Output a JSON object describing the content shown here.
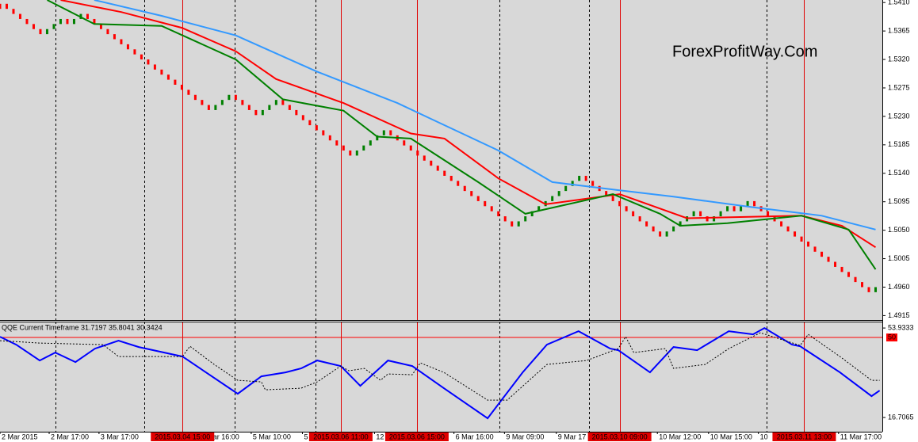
{
  "chart_data": [
    {
      "type": "renko",
      "watermark": "ForexProfitWay.Com",
      "background": "#d8d8d8",
      "xlim": [
        0,
        131
      ],
      "ylim": [
        1.4908,
        1.5414
      ],
      "yticks": [
        {
          "value": 1.541,
          "label": "1.5410"
        },
        {
          "value": 1.5365,
          "label": "1.5365"
        },
        {
          "value": 1.532,
          "label": "1.5320"
        },
        {
          "value": 1.5275,
          "label": "1.5275"
        },
        {
          "value": 1.523,
          "label": "1.5230"
        },
        {
          "value": 1.5185,
          "label": "1.5185"
        },
        {
          "value": 1.514,
          "label": "1.5140"
        },
        {
          "value": 1.5095,
          "label": "1.5095"
        },
        {
          "value": 1.505,
          "label": "1.5050"
        },
        {
          "value": 1.5005,
          "label": "1.5005"
        },
        {
          "value": 1.496,
          "label": "1.4960"
        },
        {
          "value": 1.4915,
          "label": "1.4915"
        }
      ],
      "bricks": {
        "up_color": "#008000",
        "down_color": "#ff0000",
        "values": [
          1.5408,
          1.54,
          1.5392,
          1.5384,
          1.5376,
          1.5368,
          1.536,
          1.5368,
          1.5376,
          1.5384,
          1.5376,
          1.5384,
          1.5392,
          1.5384,
          1.5376,
          1.5368,
          1.536,
          1.5352,
          1.5344,
          1.5336,
          1.5328,
          1.532,
          1.5312,
          1.5304,
          1.5296,
          1.5288,
          1.528,
          1.5272,
          1.5264,
          1.5256,
          1.5248,
          1.524,
          1.5248,
          1.5256,
          1.5264,
          1.5256,
          1.5248,
          1.524,
          1.5232,
          1.524,
          1.5248,
          1.5256,
          1.5248,
          1.524,
          1.5232,
          1.5224,
          1.5216,
          1.5208,
          1.52,
          1.5192,
          1.5184,
          1.5176,
          1.5168,
          1.5176,
          1.5184,
          1.5192,
          1.52,
          1.5208,
          1.52,
          1.5192,
          1.5184,
          1.5176,
          1.5168,
          1.516,
          1.5152,
          1.5144,
          1.5136,
          1.5128,
          1.512,
          1.5112,
          1.5104,
          1.5096,
          1.5088,
          1.508,
          1.5072,
          1.5064,
          1.5056,
          1.5064,
          1.5072,
          1.508,
          1.5088,
          1.5096,
          1.5104,
          1.5112,
          1.512,
          1.5128,
          1.5136,
          1.5128,
          1.512,
          1.5112,
          1.5104,
          1.5096,
          1.5088,
          1.508,
          1.5072,
          1.5064,
          1.5056,
          1.5048,
          1.504,
          1.5048,
          1.5056,
          1.5064,
          1.5072,
          1.508,
          1.5072,
          1.5064,
          1.5072,
          1.508,
          1.5088,
          1.508,
          1.5088,
          1.5096,
          1.5088,
          1.508,
          1.5072,
          1.5064,
          1.5056,
          1.5048,
          1.504,
          1.5032,
          1.5024,
          1.5016,
          1.5008,
          1.5,
          1.4992,
          1.4984,
          1.4976,
          1.4968,
          1.496,
          1.4952,
          1.496
        ]
      },
      "series": [
        {
          "color": "#3399ff",
          "x": [
            14,
            24,
            35,
            47,
            59,
            64,
            74,
            82,
            92,
            100,
            112,
            122,
            130
          ],
          "values": [
            1.5414,
            1.5389,
            1.5358,
            1.5301,
            1.5251,
            1.5226,
            1.5176,
            1.5126,
            1.5113,
            1.5103,
            1.5086,
            1.5073,
            1.5051
          ]
        },
        {
          "color": "#ff0000",
          "x": [
            9,
            18,
            27,
            35,
            41,
            51,
            61,
            66,
            74,
            81,
            92,
            102,
            119,
            125,
            130
          ],
          "values": [
            1.5414,
            1.5395,
            1.537,
            1.5333,
            1.5289,
            1.5251,
            1.5203,
            1.5195,
            1.5132,
            1.5091,
            1.5107,
            1.5069,
            1.5073,
            1.5057,
            1.5023
          ]
        },
        {
          "color": "#008000",
          "x": [
            7,
            14,
            24,
            35,
            42,
            51,
            56,
            61,
            71,
            78,
            91,
            98,
            101,
            108,
            119,
            126,
            130
          ],
          "values": [
            1.5414,
            1.5376,
            1.5373,
            1.532,
            1.5257,
            1.5239,
            1.5198,
            1.5195,
            1.5126,
            1.5076,
            1.5107,
            1.5076,
            1.5057,
            1.5061,
            1.5073,
            1.5051,
            1.4988
          ]
        }
      ],
      "separators": [
        8.2,
        21.4,
        34.8,
        46.8,
        74.1,
        87.4,
        113.8
      ],
      "markers": [
        {
          "x": 27.1,
          "label": "2015.03.04 15:00"
        },
        {
          "x": 50.6,
          "label": "2015.03.06 11:00"
        },
        {
          "x": 61.9,
          "label": "2015.03.06 15:00"
        },
        {
          "x": 92,
          "label": "2015.03.10 09:00"
        },
        {
          "x": 119.4,
          "label": "2015.03.11 13:00"
        }
      ],
      "marker_color": "#e00000"
    },
    {
      "type": "line",
      "label": "QQE Current Timeframe 31.7197 35.8041 30.3424",
      "background": "#d8d8d8",
      "xlim": [
        0,
        131
      ],
      "ylim": [
        10.8,
        56.6
      ],
      "yticks": [
        16.7065,
        53.9333
      ],
      "level": 50,
      "level_color": "#ff0000",
      "xticks": [
        {
          "value": 0,
          "label": "2 Mar 2015"
        },
        {
          "value": 7.3,
          "label": "2 Mar 17:00"
        },
        {
          "value": 14.7,
          "label": "3 Mar 17:00"
        },
        {
          "value": 31.4,
          "label": "ar 16:00"
        },
        {
          "value": 37.3,
          "label": "5 Mar 10:00"
        },
        {
          "value": 44.9,
          "label": "5"
        },
        {
          "value": 55.6,
          "label": "12"
        },
        {
          "value": 67.4,
          "label": "6 Mar 16:00"
        },
        {
          "value": 74.9,
          "label": "9 Mar 09:00"
        },
        {
          "value": 82.6,
          "label": "9 Mar 17"
        },
        {
          "value": 97.6,
          "label": "10 Mar 12:00"
        },
        {
          "value": 105.2,
          "label": "10 Mar 15:00"
        },
        {
          "value": 112.6,
          "label": "10"
        },
        {
          "value": 124.5,
          "label": "11 Mar 17:00"
        }
      ],
      "series": [
        {
          "color": "#0000ff",
          "dashed": false,
          "x": [
            0,
            2.4,
            5.9,
            8.2,
            11.2,
            14.1,
            17.6,
            20.6,
            27.1,
            35.3,
            38.8,
            42.4,
            44.7,
            47.1,
            50.6,
            53.5,
            57.6,
            61.2,
            65.9,
            72.4,
            77.6,
            81.2,
            85.9,
            90.6,
            91.8,
            96.5,
            100,
            103.5,
            108.2,
            111.8,
            113.5,
            117.6,
            118.8,
            124.7,
            129.4,
            130.6
          ],
          "values": [
            50.31,
            47.02,
            40.43,
            43.72,
            39.77,
            45.37,
            48.66,
            46.03,
            42.07,
            26.59,
            33.84,
            35.49,
            37.13,
            40.43,
            38.12,
            29.89,
            40.43,
            38.12,
            28.9,
            16.38,
            35.49,
            47.02,
            52.62,
            45.37,
            44.71,
            35.49,
            46.03,
            44.71,
            52.62,
            51.3,
            53.93,
            47.02,
            46.36,
            35.49,
            25.6,
            27.91
          ]
        },
        {
          "color": "#000000",
          "dashed": true,
          "x": [
            0,
            5.9,
            15.3,
            17.6,
            27.1,
            28.2,
            31.8,
            35.3,
            38.8,
            39.4,
            44.7,
            47.1,
            50.6,
            51.8,
            54.1,
            56.5,
            57.6,
            61.2,
            62.4,
            65.9,
            72.4,
            75.3,
            81.2,
            87.1,
            91.8,
            92.9,
            94.1,
            98.8,
            100,
            104.7,
            108.2,
            112.9,
            118.8,
            120,
            124.7,
            129.4,
            130.6
          ],
          "values": [
            48.66,
            47.67,
            47.02,
            42.07,
            42.07,
            46.36,
            38.78,
            32.19,
            31.53,
            28.24,
            28.9,
            31.53,
            38.12,
            36.15,
            37.13,
            32.19,
            34.83,
            34.5,
            39.44,
            35.49,
            23.96,
            23.96,
            38.78,
            40.43,
            45.37,
            50.31,
            43.72,
            45.37,
            37.13,
            38.78,
            45.37,
            51.96,
            46.69,
            51.3,
            42.07,
            32.19,
            32.19
          ]
        }
      ]
    }
  ]
}
